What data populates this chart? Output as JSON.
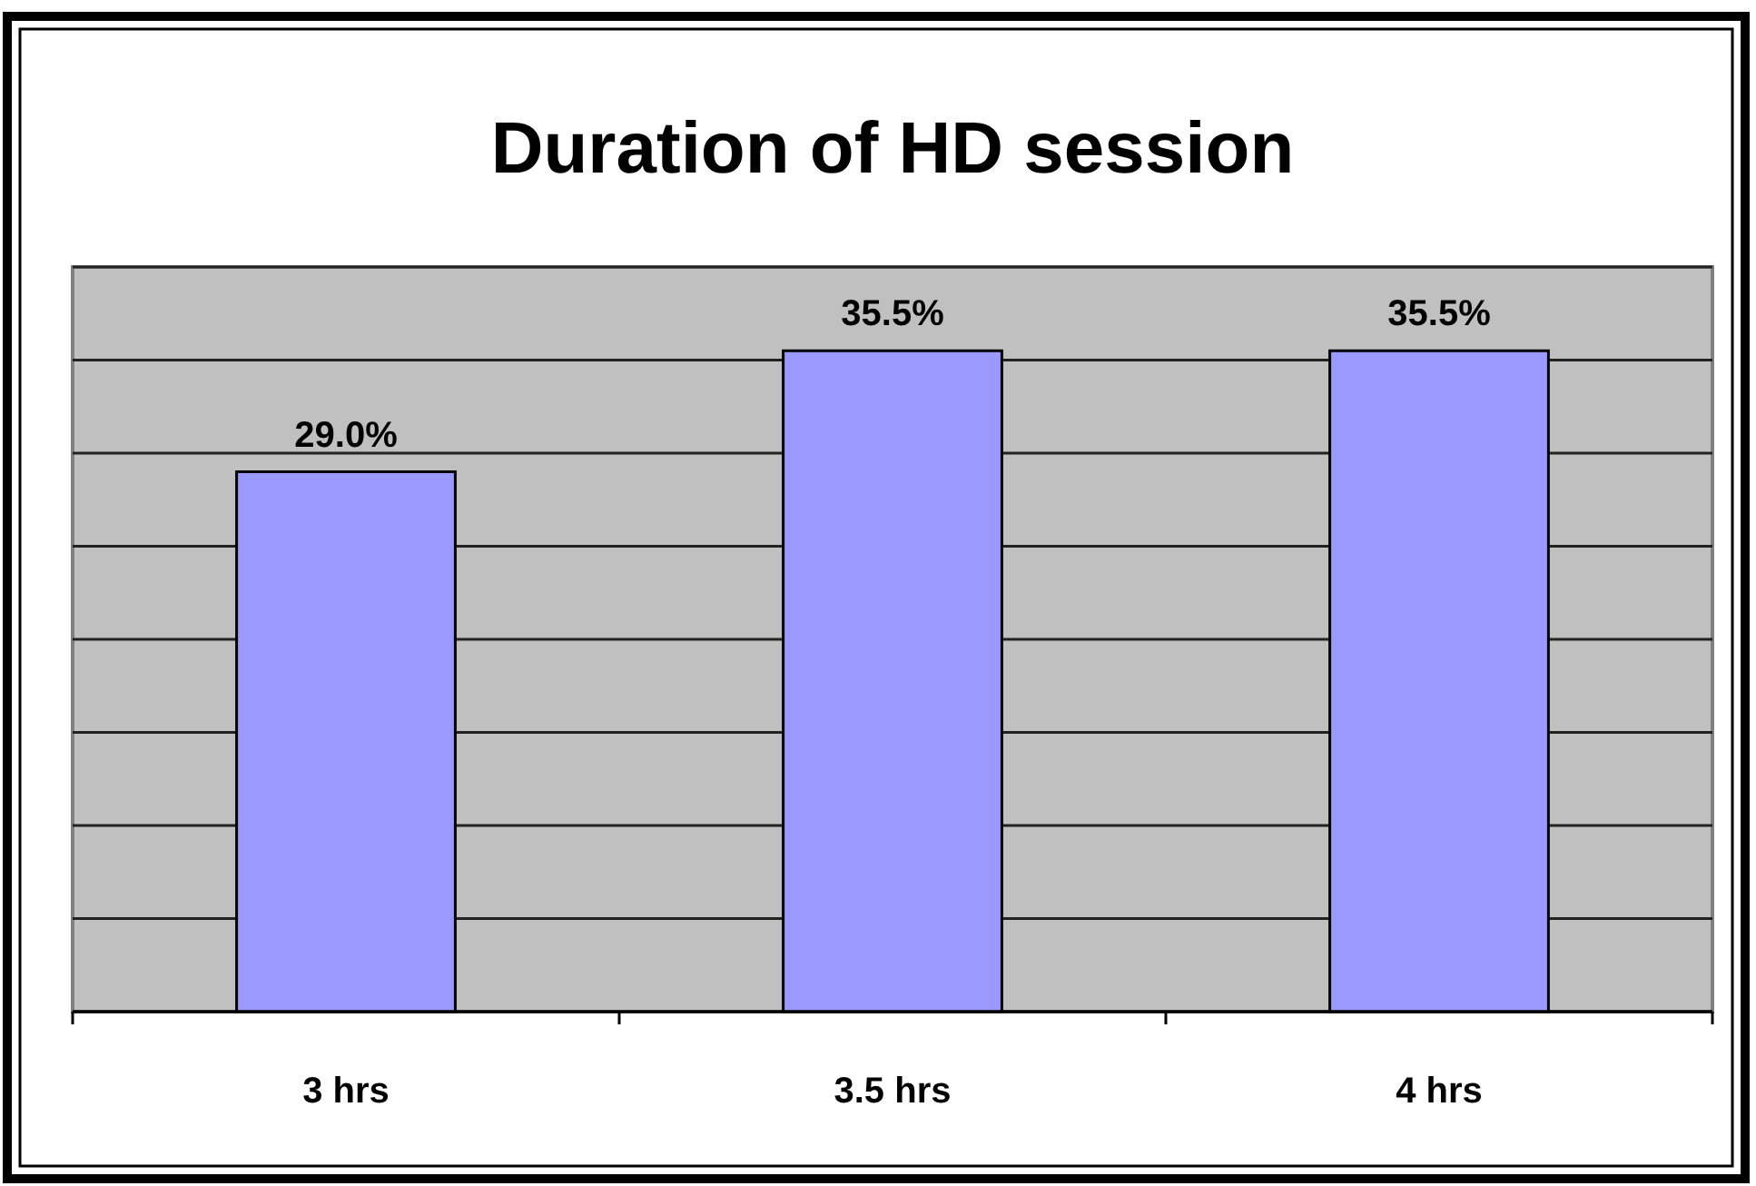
{
  "chart_data": {
    "type": "bar",
    "title": "Duration of HD session",
    "categories": [
      "3 hrs",
      "3.5 hrs",
      "4 hrs"
    ],
    "values": [
      29.0,
      35.5,
      35.5
    ],
    "color": "#9999ff",
    "value_labels": [
      "29.0%",
      "35.5%",
      "35.5%"
    ],
    "ylim": [
      0,
      40
    ],
    "yticks": [
      {
        "value": 0,
        "label": null
      },
      {
        "value": 5,
        "label": null
      },
      {
        "value": 10,
        "label": null
      },
      {
        "value": 15,
        "label": null
      },
      {
        "value": 20,
        "label": null
      },
      {
        "value": 25,
        "label": null
      },
      {
        "value": 30,
        "label": null
      },
      {
        "value": 35,
        "label": null
      },
      {
        "value": 40,
        "label": null
      }
    ],
    "grid": "y",
    "tick_labels": "x"
  }
}
